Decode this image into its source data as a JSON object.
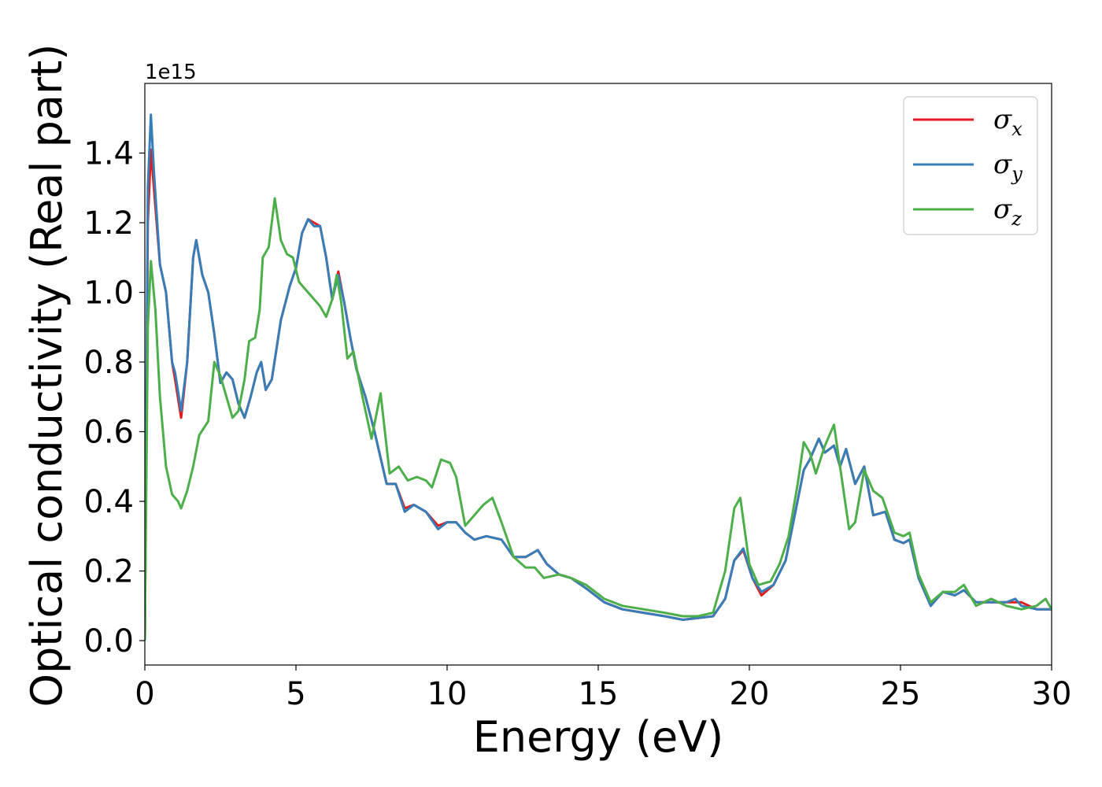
{
  "chart_data": {
    "type": "line",
    "xlabel": "Energy (eV)",
    "ylabel": "Optical conductivity (Real part)",
    "y_offset_label": "1e15",
    "xlim": [
      0,
      30
    ],
    "ylim": [
      -0.07,
      1.6
    ],
    "x_ticks": [
      0,
      5,
      10,
      15,
      20,
      25,
      30
    ],
    "x_tick_labels": [
      "0",
      "5",
      "10",
      "15",
      "20",
      "25",
      "30"
    ],
    "y_ticks": [
      0.0,
      0.2,
      0.4,
      0.6,
      0.8,
      1.0,
      1.2,
      1.4
    ],
    "y_tick_labels": [
      "0.0",
      "0.2",
      "0.4",
      "0.6",
      "0.8",
      "1.0",
      "1.2",
      "1.4"
    ],
    "grid": false,
    "legend_position": "top-right",
    "series": [
      {
        "name": "σx",
        "legend_symbol": "σ",
        "legend_sub": "x",
        "color": "#e41a1c",
        "points": [
          [
            0,
            0
          ],
          [
            0.1,
            1.2
          ],
          [
            0.2,
            1.41
          ],
          [
            0.3,
            1.3
          ],
          [
            0.5,
            1.08
          ],
          [
            0.7,
            1.0
          ],
          [
            0.9,
            0.8
          ],
          [
            1.0,
            0.75
          ],
          [
            1.2,
            0.64
          ],
          [
            1.4,
            0.8
          ],
          [
            1.6,
            1.1
          ],
          [
            1.7,
            1.15
          ],
          [
            1.9,
            1.05
          ],
          [
            2.1,
            1.0
          ],
          [
            2.3,
            0.88
          ],
          [
            2.5,
            0.74
          ],
          [
            2.7,
            0.77
          ],
          [
            2.9,
            0.75
          ],
          [
            3.1,
            0.68
          ],
          [
            3.3,
            0.64
          ],
          [
            3.5,
            0.7
          ],
          [
            3.7,
            0.77
          ],
          [
            3.85,
            0.8
          ],
          [
            4.0,
            0.72
          ],
          [
            4.2,
            0.75
          ],
          [
            4.5,
            0.92
          ],
          [
            4.8,
            1.02
          ],
          [
            5.0,
            1.07
          ],
          [
            5.2,
            1.17
          ],
          [
            5.4,
            1.21
          ],
          [
            5.6,
            1.2
          ],
          [
            5.8,
            1.19
          ],
          [
            6.0,
            1.1
          ],
          [
            6.2,
            0.98
          ],
          [
            6.4,
            1.06
          ],
          [
            6.6,
            0.97
          ],
          [
            6.8,
            0.87
          ],
          [
            7.0,
            0.78
          ],
          [
            7.3,
            0.7
          ],
          [
            7.6,
            0.6
          ],
          [
            8.0,
            0.45
          ],
          [
            8.3,
            0.45
          ],
          [
            8.6,
            0.38
          ],
          [
            8.9,
            0.39
          ],
          [
            9.3,
            0.37
          ],
          [
            9.7,
            0.33
          ],
          [
            10.0,
            0.34
          ],
          [
            10.3,
            0.34
          ],
          [
            10.6,
            0.31
          ],
          [
            10.9,
            0.29
          ],
          [
            11.3,
            0.3
          ],
          [
            11.8,
            0.29
          ],
          [
            12.2,
            0.24
          ],
          [
            12.6,
            0.24
          ],
          [
            13.0,
            0.26
          ],
          [
            13.3,
            0.22
          ],
          [
            13.7,
            0.19
          ],
          [
            14.1,
            0.18
          ],
          [
            14.6,
            0.15
          ],
          [
            15.2,
            0.11
          ],
          [
            15.8,
            0.09
          ],
          [
            16.5,
            0.08
          ],
          [
            17.2,
            0.07
          ],
          [
            17.8,
            0.06
          ],
          [
            18.3,
            0.065
          ],
          [
            18.8,
            0.07
          ],
          [
            19.2,
            0.12
          ],
          [
            19.5,
            0.23
          ],
          [
            19.8,
            0.26
          ],
          [
            20.1,
            0.18
          ],
          [
            20.4,
            0.13
          ],
          [
            20.8,
            0.16
          ],
          [
            21.2,
            0.23
          ],
          [
            21.5,
            0.36
          ],
          [
            21.8,
            0.49
          ],
          [
            22.0,
            0.52
          ],
          [
            22.3,
            0.58
          ],
          [
            22.5,
            0.54
          ],
          [
            22.8,
            0.56
          ],
          [
            23.0,
            0.5
          ],
          [
            23.2,
            0.55
          ],
          [
            23.5,
            0.45
          ],
          [
            23.8,
            0.5
          ],
          [
            24.1,
            0.36
          ],
          [
            24.5,
            0.37
          ],
          [
            24.8,
            0.29
          ],
          [
            25.1,
            0.28
          ],
          [
            25.3,
            0.29
          ],
          [
            25.6,
            0.18
          ],
          [
            26.0,
            0.1
          ],
          [
            26.4,
            0.14
          ],
          [
            26.8,
            0.13
          ],
          [
            27.1,
            0.145
          ],
          [
            27.5,
            0.11
          ],
          [
            28.0,
            0.11
          ],
          [
            28.5,
            0.11
          ],
          [
            29.0,
            0.11
          ],
          [
            29.5,
            0.09
          ],
          [
            30.0,
            0.09
          ]
        ]
      },
      {
        "name": "σy",
        "legend_symbol": "σ",
        "legend_sub": "y",
        "color": "#377eb8",
        "points": [
          [
            0,
            0
          ],
          [
            0.1,
            1.3
          ],
          [
            0.2,
            1.51
          ],
          [
            0.3,
            1.35
          ],
          [
            0.5,
            1.08
          ],
          [
            0.7,
            1.0
          ],
          [
            0.9,
            0.8
          ],
          [
            1.0,
            0.77
          ],
          [
            1.2,
            0.66
          ],
          [
            1.4,
            0.8
          ],
          [
            1.6,
            1.1
          ],
          [
            1.7,
            1.15
          ],
          [
            1.9,
            1.05
          ],
          [
            2.1,
            1.0
          ],
          [
            2.3,
            0.88
          ],
          [
            2.5,
            0.74
          ],
          [
            2.7,
            0.77
          ],
          [
            2.9,
            0.75
          ],
          [
            3.1,
            0.68
          ],
          [
            3.3,
            0.64
          ],
          [
            3.5,
            0.7
          ],
          [
            3.7,
            0.77
          ],
          [
            3.85,
            0.8
          ],
          [
            4.0,
            0.72
          ],
          [
            4.2,
            0.75
          ],
          [
            4.5,
            0.92
          ],
          [
            4.8,
            1.02
          ],
          [
            5.0,
            1.07
          ],
          [
            5.2,
            1.17
          ],
          [
            5.4,
            1.21
          ],
          [
            5.6,
            1.19
          ],
          [
            5.8,
            1.19
          ],
          [
            6.0,
            1.1
          ],
          [
            6.2,
            0.98
          ],
          [
            6.4,
            1.05
          ],
          [
            6.6,
            0.97
          ],
          [
            6.8,
            0.87
          ],
          [
            7.0,
            0.78
          ],
          [
            7.3,
            0.7
          ],
          [
            7.6,
            0.6
          ],
          [
            8.0,
            0.45
          ],
          [
            8.3,
            0.45
          ],
          [
            8.6,
            0.37
          ],
          [
            8.9,
            0.39
          ],
          [
            9.3,
            0.37
          ],
          [
            9.7,
            0.32
          ],
          [
            10.0,
            0.34
          ],
          [
            10.3,
            0.34
          ],
          [
            10.6,
            0.31
          ],
          [
            10.9,
            0.29
          ],
          [
            11.3,
            0.3
          ],
          [
            11.8,
            0.29
          ],
          [
            12.2,
            0.24
          ],
          [
            12.6,
            0.24
          ],
          [
            13.0,
            0.26
          ],
          [
            13.3,
            0.22
          ],
          [
            13.7,
            0.19
          ],
          [
            14.1,
            0.18
          ],
          [
            14.6,
            0.15
          ],
          [
            15.2,
            0.11
          ],
          [
            15.8,
            0.09
          ],
          [
            16.5,
            0.08
          ],
          [
            17.2,
            0.07
          ],
          [
            17.8,
            0.06
          ],
          [
            18.3,
            0.065
          ],
          [
            18.8,
            0.07
          ],
          [
            19.2,
            0.12
          ],
          [
            19.5,
            0.23
          ],
          [
            19.8,
            0.265
          ],
          [
            20.1,
            0.18
          ],
          [
            20.4,
            0.14
          ],
          [
            20.8,
            0.16
          ],
          [
            21.2,
            0.23
          ],
          [
            21.5,
            0.36
          ],
          [
            21.8,
            0.49
          ],
          [
            22.0,
            0.52
          ],
          [
            22.3,
            0.58
          ],
          [
            22.5,
            0.54
          ],
          [
            22.8,
            0.56
          ],
          [
            23.0,
            0.5
          ],
          [
            23.2,
            0.55
          ],
          [
            23.5,
            0.45
          ],
          [
            23.8,
            0.5
          ],
          [
            24.1,
            0.36
          ],
          [
            24.5,
            0.37
          ],
          [
            24.8,
            0.29
          ],
          [
            25.1,
            0.28
          ],
          [
            25.3,
            0.29
          ],
          [
            25.6,
            0.18
          ],
          [
            26.0,
            0.1
          ],
          [
            26.4,
            0.14
          ],
          [
            26.8,
            0.13
          ],
          [
            27.1,
            0.145
          ],
          [
            27.5,
            0.11
          ],
          [
            28.0,
            0.11
          ],
          [
            28.5,
            0.11
          ],
          [
            28.8,
            0.12
          ],
          [
            29.0,
            0.1
          ],
          [
            29.5,
            0.09
          ],
          [
            30.0,
            0.09
          ]
        ]
      },
      {
        "name": "σz",
        "legend_symbol": "σ",
        "legend_sub": "z",
        "color": "#4daf4a",
        "points": [
          [
            0,
            0
          ],
          [
            0.1,
            0.9
          ],
          [
            0.2,
            1.09
          ],
          [
            0.35,
            0.95
          ],
          [
            0.5,
            0.7
          ],
          [
            0.7,
            0.5
          ],
          [
            0.9,
            0.42
          ],
          [
            1.1,
            0.4
          ],
          [
            1.2,
            0.38
          ],
          [
            1.4,
            0.43
          ],
          [
            1.6,
            0.5
          ],
          [
            1.8,
            0.59
          ],
          [
            2.1,
            0.63
          ],
          [
            2.3,
            0.8
          ],
          [
            2.5,
            0.76
          ],
          [
            2.7,
            0.7
          ],
          [
            2.9,
            0.64
          ],
          [
            3.1,
            0.66
          ],
          [
            3.3,
            0.75
          ],
          [
            3.45,
            0.86
          ],
          [
            3.65,
            0.87
          ],
          [
            3.8,
            0.95
          ],
          [
            3.9,
            1.1
          ],
          [
            4.1,
            1.13
          ],
          [
            4.3,
            1.27
          ],
          [
            4.5,
            1.15
          ],
          [
            4.7,
            1.11
          ],
          [
            4.9,
            1.1
          ],
          [
            5.1,
            1.03
          ],
          [
            5.3,
            1.01
          ],
          [
            5.5,
            0.99
          ],
          [
            5.8,
            0.96
          ],
          [
            6.0,
            0.93
          ],
          [
            6.2,
            0.98
          ],
          [
            6.35,
            1.05
          ],
          [
            6.5,
            0.97
          ],
          [
            6.7,
            0.81
          ],
          [
            6.9,
            0.83
          ],
          [
            7.2,
            0.7
          ],
          [
            7.5,
            0.58
          ],
          [
            7.8,
            0.71
          ],
          [
            8.1,
            0.48
          ],
          [
            8.4,
            0.5
          ],
          [
            8.7,
            0.46
          ],
          [
            9.0,
            0.47
          ],
          [
            9.3,
            0.46
          ],
          [
            9.5,
            0.44
          ],
          [
            9.8,
            0.52
          ],
          [
            10.1,
            0.51
          ],
          [
            10.3,
            0.47
          ],
          [
            10.6,
            0.33
          ],
          [
            10.9,
            0.36
          ],
          [
            11.2,
            0.39
          ],
          [
            11.5,
            0.41
          ],
          [
            11.8,
            0.34
          ],
          [
            12.2,
            0.24
          ],
          [
            12.6,
            0.21
          ],
          [
            12.9,
            0.21
          ],
          [
            13.2,
            0.18
          ],
          [
            13.7,
            0.19
          ],
          [
            14.1,
            0.18
          ],
          [
            14.6,
            0.16
          ],
          [
            15.2,
            0.12
          ],
          [
            15.8,
            0.1
          ],
          [
            16.5,
            0.09
          ],
          [
            17.2,
            0.08
          ],
          [
            17.8,
            0.07
          ],
          [
            18.3,
            0.07
          ],
          [
            18.8,
            0.08
          ],
          [
            19.2,
            0.2
          ],
          [
            19.5,
            0.38
          ],
          [
            19.7,
            0.41
          ],
          [
            20.0,
            0.22
          ],
          [
            20.3,
            0.16
          ],
          [
            20.7,
            0.17
          ],
          [
            21.0,
            0.22
          ],
          [
            21.3,
            0.3
          ],
          [
            21.6,
            0.45
          ],
          [
            21.8,
            0.57
          ],
          [
            22.0,
            0.54
          ],
          [
            22.2,
            0.48
          ],
          [
            22.5,
            0.56
          ],
          [
            22.8,
            0.62
          ],
          [
            23.0,
            0.5
          ],
          [
            23.3,
            0.32
          ],
          [
            23.5,
            0.34
          ],
          [
            23.8,
            0.49
          ],
          [
            24.1,
            0.43
          ],
          [
            24.4,
            0.41
          ],
          [
            24.8,
            0.31
          ],
          [
            25.1,
            0.3
          ],
          [
            25.3,
            0.31
          ],
          [
            25.6,
            0.19
          ],
          [
            26.0,
            0.11
          ],
          [
            26.4,
            0.14
          ],
          [
            26.8,
            0.14
          ],
          [
            27.1,
            0.16
          ],
          [
            27.5,
            0.1
          ],
          [
            28.0,
            0.12
          ],
          [
            28.5,
            0.1
          ],
          [
            29.0,
            0.09
          ],
          [
            29.5,
            0.1
          ],
          [
            29.8,
            0.12
          ],
          [
            30.0,
            0.09
          ]
        ]
      }
    ]
  }
}
